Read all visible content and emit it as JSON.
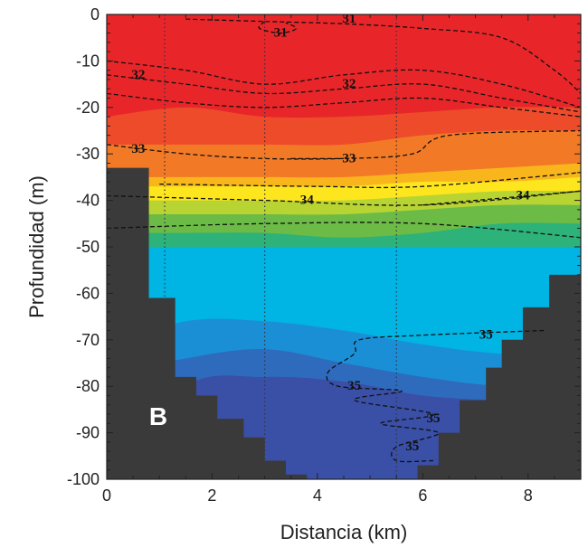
{
  "chart_data": {
    "type": "heatmap",
    "subtype": "filled-contour section",
    "panel_label": "B",
    "xlabel": "Distancia (km)",
    "ylabel": "Profundidad (m)",
    "xlim": [
      0,
      9
    ],
    "ylim": [
      -100,
      0
    ],
    "xticks": [
      "0",
      "2",
      "4",
      "6",
      "8"
    ],
    "yticks": [
      "0",
      "-10",
      "-20",
      "-30",
      "-40",
      "-50",
      "-60",
      "-70",
      "-80",
      "-90",
      "-100"
    ],
    "grid": false,
    "station_lines_km": [
      1.1,
      3.0,
      5.5
    ],
    "band_x_km": [
      0,
      1.5,
      3,
      4.5,
      6,
      7.5,
      9
    ],
    "bands": [
      {
        "color": "#e8262a",
        "lower_depth": [
          -22,
          -20,
          -22,
          -22,
          -21,
          -20,
          -20
        ]
      },
      {
        "color": "#ee4b2b",
        "lower_depth": [
          -28,
          -28,
          -28,
          -28,
          -26,
          -25,
          -25
        ]
      },
      {
        "color": "#f27a26",
        "lower_depth": [
          -35,
          -35,
          -35,
          -35,
          -34,
          -33,
          -32
        ]
      },
      {
        "color": "#f9b51c",
        "lower_depth": [
          -37,
          -37,
          -37,
          -37,
          -36,
          -36,
          -35
        ]
      },
      {
        "color": "#fde61d",
        "lower_depth": [
          -40,
          -40,
          -40,
          -40,
          -39,
          -38,
          -38
        ]
      },
      {
        "color": "#b8d433",
        "lower_depth": [
          -43,
          -43,
          -43,
          -43,
          -42,
          -41,
          -41
        ]
      },
      {
        "color": "#6cbb46",
        "lower_depth": [
          -47,
          -47,
          -47,
          -48,
          -47,
          -45,
          -45
        ]
      },
      {
        "color": "#2db27a",
        "lower_depth": [
          -50,
          -50,
          -50,
          -50,
          -50,
          -50,
          -50
        ]
      },
      {
        "color": "#00b4e4",
        "lower_depth": [
          -72,
          -66,
          -66,
          -68,
          -71,
          -73,
          -73
        ]
      },
      {
        "color": "#1b8fd6",
        "lower_depth": [
          -78,
          -74,
          -72,
          -75,
          -78,
          -80,
          -80
        ]
      },
      {
        "color": "#2f6bbd",
        "lower_depth": [
          -100,
          -80,
          -78,
          -79,
          -82,
          -83,
          -83
        ]
      },
      {
        "color": "#3a4fa6",
        "lower_depth": [
          -100,
          -100,
          -100,
          -100,
          -100,
          -100,
          -100
        ]
      }
    ],
    "bottom_color": "#3a3a3a",
    "bathymetry_left": [
      [
        0,
        -33
      ],
      [
        0.8,
        -61
      ],
      [
        1.3,
        -78
      ],
      [
        1.7,
        -82
      ],
      [
        2.1,
        -87
      ],
      [
        2.6,
        -91
      ],
      [
        3.0,
        -96
      ],
      [
        3.4,
        -99
      ],
      [
        3.8,
        -100
      ]
    ],
    "bathymetry_right": [
      [
        9,
        -56
      ],
      [
        8.4,
        -63
      ],
      [
        7.9,
        -70
      ],
      [
        7.5,
        -76
      ],
      [
        7.2,
        -83
      ],
      [
        6.7,
        -90
      ],
      [
        6.3,
        -97
      ],
      [
        5.9,
        -100
      ]
    ],
    "contours": [
      {
        "level": "31",
        "points": [
          [
            1.5,
            -1
          ],
          [
            3,
            -1.5
          ],
          [
            4.5,
            -2
          ],
          [
            6,
            -3
          ],
          [
            7.5,
            -5
          ],
          [
            8.5,
            -12
          ],
          [
            9,
            -17
          ]
        ],
        "label_at": [
          4.6,
          -1
        ]
      },
      {
        "level": "31",
        "points": [
          [
            3,
            -1.5
          ],
          [
            2.9,
            -3
          ],
          [
            3.3,
            -4
          ],
          [
            3.6,
            -3
          ],
          [
            3.4,
            -1.8
          ]
        ],
        "label_at": [
          3.3,
          -4
        ]
      },
      {
        "level": "32",
        "points": [
          [
            0,
            -10
          ],
          [
            1.5,
            -12
          ],
          [
            3,
            -15
          ],
          [
            4.5,
            -13
          ],
          [
            6,
            -12
          ],
          [
            7.5,
            -15
          ],
          [
            9,
            -20
          ]
        ],
        "label_at": [
          0.6,
          -13
        ]
      },
      {
        "level": "32",
        "points": [
          [
            0,
            -13
          ],
          [
            1.5,
            -15
          ],
          [
            3,
            -17
          ],
          [
            4.5,
            -16
          ],
          [
            6,
            -15
          ],
          [
            7.5,
            -18
          ],
          [
            9,
            -21
          ]
        ],
        "label_at": [
          4.6,
          -15
        ]
      },
      {
        "level": "32",
        "points": [
          [
            0,
            -17
          ],
          [
            1.5,
            -19
          ],
          [
            3,
            -20
          ],
          [
            4.5,
            -19
          ],
          [
            6,
            -18
          ],
          [
            7.5,
            -20
          ],
          [
            9,
            -22
          ]
        ],
        "label_at": null
      },
      {
        "level": "33",
        "points": [
          [
            0,
            -28
          ],
          [
            1.5,
            -30
          ],
          [
            3,
            -31
          ],
          [
            4.5,
            -31
          ],
          [
            5.8,
            -30
          ],
          [
            6.5,
            -26
          ],
          [
            9,
            -25
          ]
        ],
        "label_at": [
          0.6,
          -29
        ]
      },
      {
        "level": "33",
        "points": [
          [
            3.5,
            -31
          ],
          [
            4.5,
            -31
          ]
        ],
        "label_at": [
          4.6,
          -31
        ]
      },
      {
        "level": "34",
        "points": [
          [
            1,
            -36.5
          ],
          [
            4,
            -37
          ],
          [
            6,
            -37
          ],
          [
            9,
            -34
          ]
        ],
        "label_at": null
      },
      {
        "level": "34",
        "points": [
          [
            0,
            -39
          ],
          [
            3,
            -40
          ],
          [
            6,
            -41
          ],
          [
            9,
            -38
          ]
        ],
        "label_at": [
          3.8,
          -40
        ]
      },
      {
        "level": "34",
        "points": [
          [
            6,
            -41
          ],
          [
            9,
            -38
          ]
        ],
        "label_at": [
          7.9,
          -39
        ]
      },
      {
        "level": "34",
        "points": [
          [
            0,
            -46
          ],
          [
            3,
            -45
          ],
          [
            6,
            -45
          ],
          [
            9,
            -48
          ]
        ],
        "label_at": null
      },
      {
        "level": "35",
        "points": [
          [
            8.3,
            -68
          ],
          [
            6,
            -69
          ],
          [
            4.8,
            -70
          ],
          [
            4.7,
            -73
          ],
          [
            4.2,
            -77
          ],
          [
            4.4,
            -80
          ],
          [
            5.6,
            -81
          ],
          [
            4.7,
            -83
          ],
          [
            6.2,
            -86
          ],
          [
            5.2,
            -88
          ],
          [
            6.3,
            -90
          ],
          [
            5.5,
            -93
          ],
          [
            5.5,
            -96
          ],
          [
            6.2,
            -96
          ]
        ],
        "label_at": [
          7.2,
          -69
        ]
      },
      {
        "level": "35",
        "points": [],
        "label_at": [
          4.7,
          -80
        ]
      },
      {
        "level": "35",
        "points": [],
        "label_at": [
          6.2,
          -87
        ]
      },
      {
        "level": "35",
        "points": [],
        "label_at": [
          5.8,
          -93
        ]
      }
    ]
  }
}
